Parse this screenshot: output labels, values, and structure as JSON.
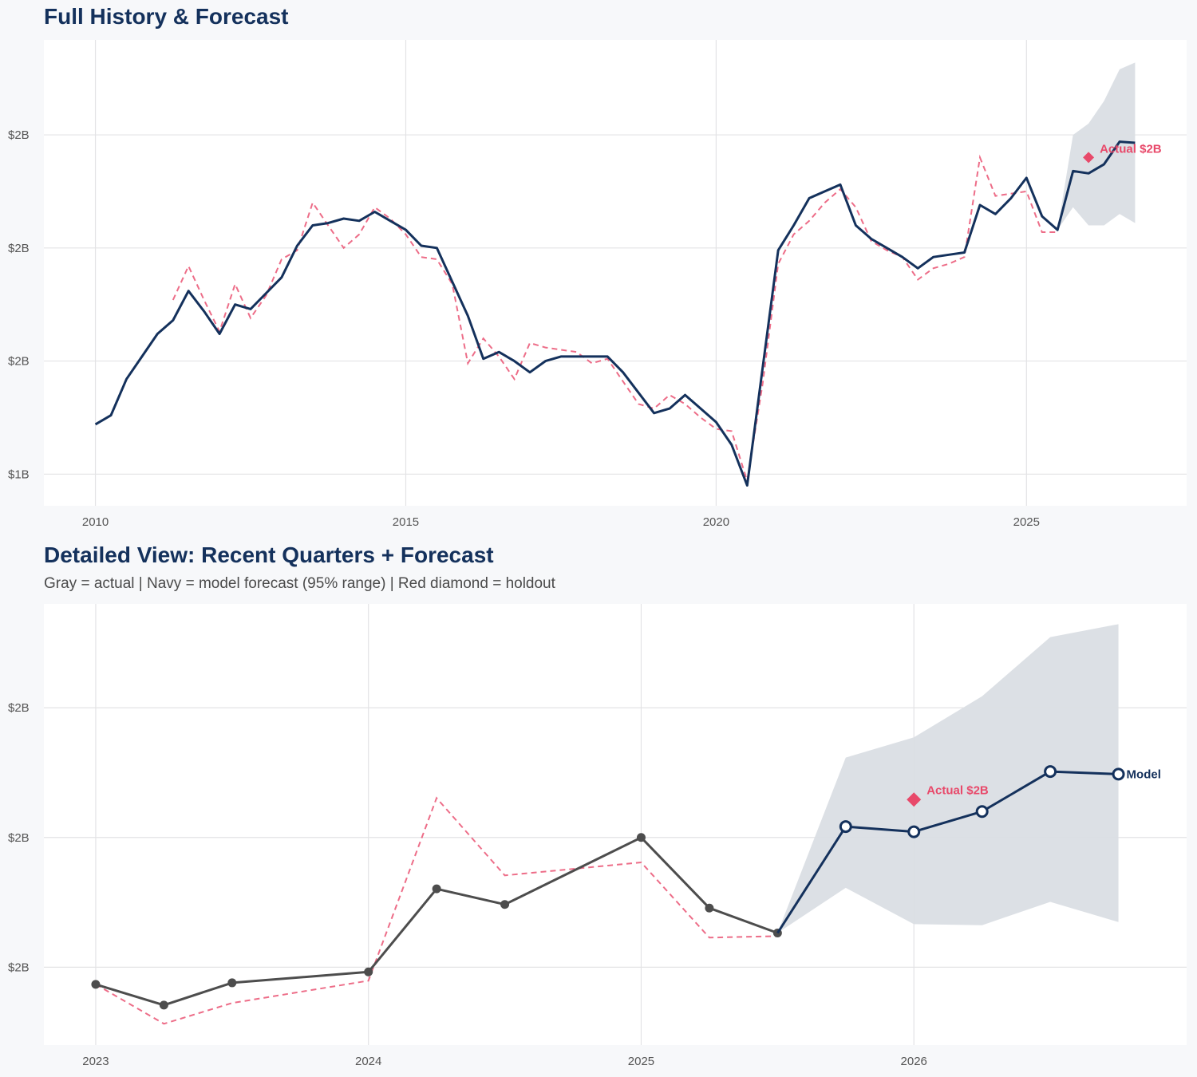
{
  "colors": {
    "navy": "#14315c",
    "actual_red": "#e8496a",
    "gray_actual": "#4d4d4d",
    "band": "#dadee4",
    "grid": "#e3e3e5",
    "panel_bg": "#ffffff",
    "page_bg": "#f7f8fa"
  },
  "chart_data": [
    {
      "type": "line",
      "title": "Full History & Forecast",
      "subtitle": "",
      "xlabel": "",
      "ylabel": "",
      "x_ticks": [
        2010,
        2015,
        2020,
        2025
      ],
      "x_tick_labels": [
        "2010",
        "2015",
        "2020",
        "2025"
      ],
      "y_ticks": [
        1.0,
        1.5,
        2.0,
        2.5
      ],
      "y_tick_labels": [
        "$1B",
        "$2B",
        "$2B",
        "$2B"
      ],
      "xlim": [
        2009.17,
        2027.58
      ],
      "ylim": [
        0.86,
        2.92
      ],
      "grid": true,
      "series": [
        {
          "role": "model-fit",
          "style": "navy-solid",
          "x": [
            2010.0,
            2010.25,
            2010.5,
            2010.75,
            2011.0,
            2011.25,
            2011.5,
            2011.75,
            2012.0,
            2012.25,
            2012.5,
            2012.75,
            2013.0,
            2013.25,
            2013.5,
            2013.75,
            2014.0,
            2014.25,
            2014.5,
            2014.75,
            2015.0,
            2015.25,
            2015.5,
            2015.75,
            2016.0,
            2016.25,
            2016.5,
            2016.75,
            2017.0,
            2017.25,
            2017.5,
            2017.75,
            2018.0,
            2018.25,
            2018.5,
            2018.75,
            2019.0,
            2019.25,
            2019.5,
            2019.75,
            2020.0,
            2020.25,
            2020.5,
            2020.75,
            2021.0,
            2021.25,
            2021.5,
            2021.75,
            2022.0,
            2022.25,
            2022.5,
            2022.75,
            2023.0,
            2023.25,
            2023.5,
            2023.75,
            2024.0,
            2024.25,
            2024.5,
            2024.75,
            2025.0,
            2025.25,
            2025.5,
            2025.75,
            2026.0,
            2026.25,
            2026.5,
            2026.75
          ],
          "y": [
            1.22,
            1.26,
            1.42,
            1.52,
            1.62,
            1.68,
            1.81,
            1.72,
            1.62,
            1.75,
            1.73,
            1.8,
            1.87,
            2.01,
            2.1,
            2.11,
            2.13,
            2.12,
            2.16,
            2.12,
            2.08,
            2.01,
            2.0,
            1.85,
            1.7,
            1.51,
            1.54,
            1.5,
            1.45,
            1.5,
            1.52,
            1.52,
            1.52,
            1.52,
            1.45,
            1.36,
            1.27,
            1.29,
            1.35,
            1.29,
            1.23,
            1.13,
            0.95,
            1.47,
            1.99,
            2.1,
            2.22,
            2.25,
            2.28,
            2.1,
            2.04,
            2.0,
            1.96,
            1.91,
            1.96,
            1.97,
            1.98,
            2.19,
            2.15,
            2.22,
            2.31,
            2.14,
            2.08,
            2.34,
            2.33,
            2.37,
            2.47,
            2.465
          ]
        },
        {
          "role": "actual",
          "style": "red-dashed",
          "x": [
            2011.25,
            2011.5,
            2011.75,
            2012.0,
            2012.25,
            2012.5,
            2012.75,
            2013.0,
            2013.25,
            2013.5,
            2013.75,
            2014.0,
            2014.25,
            2014.5,
            2014.75,
            2015.0,
            2015.25,
            2015.5,
            2015.75,
            2016.0,
            2016.25,
            2016.5,
            2016.75,
            2017.0,
            2017.25,
            2017.5,
            2017.75,
            2018.0,
            2018.25,
            2018.5,
            2018.75,
            2019.0,
            2019.25,
            2019.5,
            2019.75,
            2020.0,
            2020.25,
            2020.5,
            2020.75,
            2021.0,
            2021.25,
            2021.5,
            2021.75,
            2022.0,
            2022.25,
            2022.5,
            2022.75,
            2023.0,
            2023.25,
            2023.5,
            2023.75,
            2024.0,
            2024.25,
            2024.5,
            2024.75,
            2025.0,
            2025.25,
            2025.5
          ],
          "y": [
            1.77,
            1.92,
            1.77,
            1.63,
            1.84,
            1.69,
            1.79,
            1.95,
            1.99,
            2.2,
            2.1,
            2.0,
            2.06,
            2.18,
            2.13,
            2.06,
            1.96,
            1.95,
            1.84,
            1.49,
            1.6,
            1.52,
            1.42,
            1.58,
            1.56,
            1.55,
            1.54,
            1.49,
            1.51,
            1.41,
            1.31,
            1.29,
            1.35,
            1.31,
            1.25,
            1.2,
            1.19,
            0.97,
            1.4,
            1.93,
            2.06,
            2.12,
            2.2,
            2.26,
            2.18,
            2.03,
            1.99,
            1.96,
            1.86,
            1.91,
            1.93,
            1.96,
            2.4,
            2.23,
            2.24,
            2.25,
            2.07,
            2.07
          ]
        }
      ],
      "forecast_band": {
        "x": [
          2025.5,
          2025.75,
          2026.0,
          2026.25,
          2026.5,
          2026.75
        ],
        "lower": [
          2.08,
          2.18,
          2.1,
          2.1,
          2.15,
          2.11
        ],
        "upper": [
          2.08,
          2.5,
          2.55,
          2.65,
          2.79,
          2.82
        ]
      },
      "holdout": {
        "x": 2026.0,
        "y": 2.4,
        "label": "Actual $2B"
      },
      "end_label": ""
    },
    {
      "type": "line",
      "title": "Detailed View: Recent Quarters + Forecast",
      "subtitle": "Gray = actual  |  Navy = model forecast (95% range)  |  Red diamond = holdout",
      "xlabel": "",
      "ylabel": "",
      "x_ticks": [
        2023,
        2024,
        2025,
        2026
      ],
      "x_tick_labels": [
        "2023",
        "2024",
        "2025",
        "2026"
      ],
      "y_ticks": [
        2.0,
        2.25,
        2.5
      ],
      "y_tick_labels": [
        "$2B",
        "$2B",
        "$2B"
      ],
      "xlim": [
        2022.81,
        2027.0
      ],
      "ylim": [
        1.85,
        2.7
      ],
      "grid": true,
      "series": [
        {
          "role": "actual",
          "style": "gray-solid-dots",
          "x": [
            2023.0,
            2023.25,
            2023.5,
            2024.0,
            2024.25,
            2024.5,
            2025.0,
            2025.25,
            2025.5
          ],
          "y": [
            1.967,
            1.927,
            1.97,
            1.991,
            2.151,
            2.121,
            2.25,
            2.114,
            2.066
          ]
        },
        {
          "role": "model-fit",
          "style": "red-dashed",
          "x": [
            2023.0,
            2023.25,
            2023.5,
            2024.0,
            2024.25,
            2024.5,
            2025.0,
            2025.25,
            2025.5
          ],
          "y": [
            1.967,
            1.891,
            1.931,
            1.974,
            2.326,
            2.177,
            2.202,
            2.057,
            2.06
          ]
        },
        {
          "role": "forecast",
          "style": "navy-solid-rings",
          "x": [
            2025.5,
            2025.75,
            2026.0,
            2026.25,
            2026.5,
            2026.75
          ],
          "y": [
            2.066,
            2.271,
            2.261,
            2.3,
            2.377,
            2.372
          ]
        }
      ],
      "forecast_band": {
        "x": [
          2025.5,
          2025.75,
          2026.0,
          2026.25,
          2026.5,
          2026.75
        ],
        "lower": [
          2.066,
          2.153,
          2.083,
          2.081,
          2.126,
          2.087
        ],
        "upper": [
          2.066,
          2.404,
          2.443,
          2.522,
          2.636,
          2.661
        ]
      },
      "holdout": {
        "x": 2026.0,
        "y": 2.323,
        "label": "Actual $2B"
      },
      "end_label": "Model"
    }
  ]
}
